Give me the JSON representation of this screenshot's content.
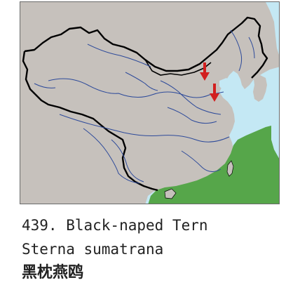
{
  "species": {
    "number_name": "439. Black-naped Tern",
    "scientific_name": "Sterna sumatrana",
    "chinese_name": "黑枕燕鸥"
  },
  "map": {
    "land_color": "#c6c1bc",
    "sea_color": "#c4e8f4",
    "range_color": "#56a64a",
    "border_color": "#000000",
    "river_color": "#2d4a9a",
    "marker_color": "#d21f1f",
    "markers": [
      "red-arrow-down",
      "red-arrow-down"
    ]
  }
}
